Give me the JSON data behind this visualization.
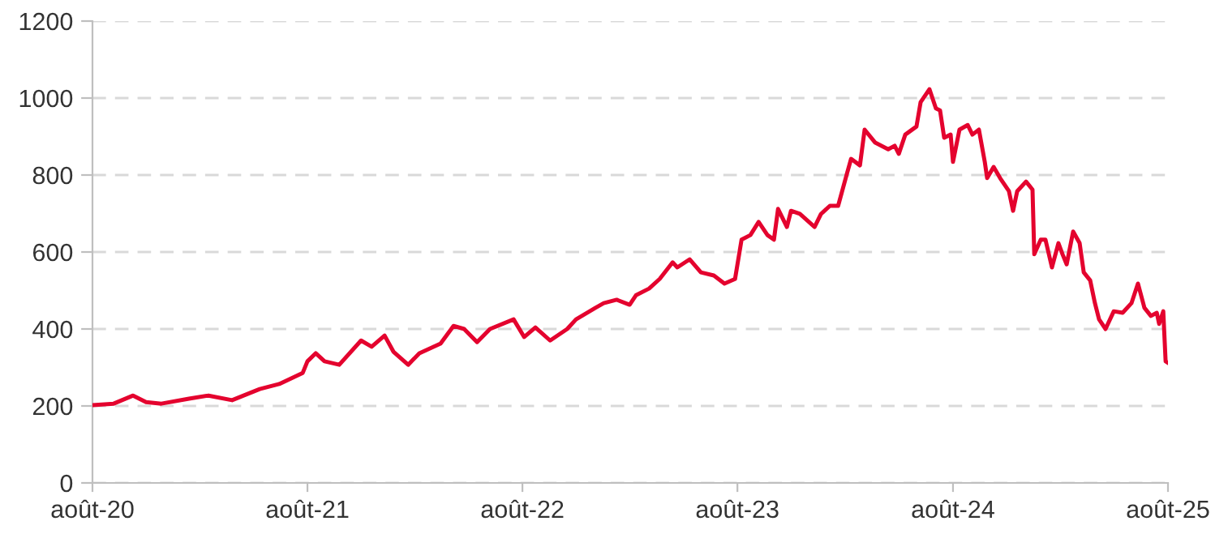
{
  "chart_data": {
    "type": "line",
    "xlim": [
      "2020-08-01",
      "2025-08-01"
    ],
    "xticks": [
      {
        "value": "2020-08-01",
        "label": "août-20"
      },
      {
        "value": "2021-08-01",
        "label": "août-21"
      },
      {
        "value": "2022-08-01",
        "label": "août-22"
      },
      {
        "value": "2023-08-01",
        "label": "août-23"
      },
      {
        "value": "2024-08-01",
        "label": "août-24"
      },
      {
        "value": "2025-08-01",
        "label": "août-25"
      }
    ],
    "ylim": [
      0,
      1200
    ],
    "yticks": [
      0,
      200,
      400,
      600,
      800,
      1000,
      1200
    ],
    "grid": "y",
    "line_style": "solid",
    "marker": "none",
    "series": [
      {
        "color": "#e4032e",
        "x": [
          "2020-08-01",
          "2020-09-06",
          "2020-10-09",
          "2020-10-31",
          "2020-11-26",
          "2021-01-12",
          "2021-02-14",
          "2021-03-26",
          "2021-05-12",
          "2021-06-14",
          "2021-07-24",
          "2021-08-01",
          "2021-08-15",
          "2021-08-30",
          "2021-09-24",
          "2021-10-31",
          "2021-11-18",
          "2021-12-10",
          "2021-12-25",
          "2022-01-19",
          "2022-02-07",
          "2022-03-15",
          "2022-04-06",
          "2022-04-24",
          "2022-05-16",
          "2022-06-07",
          "2022-07-17",
          "2022-08-04",
          "2022-08-23",
          "2022-09-17",
          "2022-10-16",
          "2022-10-31",
          "2022-12-03",
          "2022-12-17",
          "2023-01-08",
          "2023-01-30",
          "2023-02-10",
          "2023-03-04",
          "2023-03-22",
          "2023-04-13",
          "2023-04-21",
          "2023-05-12",
          "2023-05-31",
          "2023-06-22",
          "2023-07-10",
          "2023-07-28",
          "2023-08-08",
          "2023-08-23",
          "2023-09-06",
          "2023-09-21",
          "2023-10-02",
          "2023-10-09",
          "2023-10-24",
          "2023-10-31",
          "2023-11-15",
          "2023-12-10",
          "2023-12-21",
          "2024-01-05",
          "2024-01-19",
          "2024-02-03",
          "2024-02-10",
          "2024-02-25",
          "2024-03-04",
          "2024-03-22",
          "2024-04-13",
          "2024-04-24",
          "2024-05-01",
          "2024-05-12",
          "2024-05-31",
          "2024-06-07",
          "2024-06-22",
          "2024-07-03",
          "2024-07-10",
          "2024-07-17",
          "2024-07-28",
          "2024-08-01",
          "2024-08-12",
          "2024-08-26",
          "2024-09-03",
          "2024-09-14",
          "2024-09-24",
          "2024-09-28",
          "2024-10-09",
          "2024-10-20",
          "2024-11-04",
          "2024-11-11",
          "2024-11-18",
          "2024-12-03",
          "2024-12-14",
          "2024-12-17",
          "2024-12-28",
          "2025-01-05",
          "2025-01-16",
          "2025-01-27",
          "2025-02-03",
          "2025-02-10",
          "2025-02-21",
          "2025-03-04",
          "2025-03-11",
          "2025-03-22",
          "2025-03-30",
          "2025-04-06",
          "2025-04-17",
          "2025-05-01",
          "2025-05-16",
          "2025-05-31",
          "2025-06-11",
          "2025-06-22",
          "2025-07-03",
          "2025-07-13",
          "2025-07-17",
          "2025-07-24",
          "2025-07-28",
          "2025-08-01"
        ],
        "values": [
          202,
          206,
          227,
          210,
          206,
          219,
          227,
          215,
          244,
          257,
          286,
          316,
          337,
          316,
          307,
          370,
          354,
          383,
          341,
          307,
          337,
          362,
          408,
          400,
          366,
          400,
          425,
          379,
          404,
          370,
          400,
          425,
          455,
          467,
          476,
          463,
          488,
          505,
          530,
          573,
          560,
          581,
          547,
          539,
          518,
          530,
          632,
          644,
          678,
          644,
          632,
          712,
          665,
          707,
          699,
          665,
          699,
          720,
          720,
          804,
          842,
          825,
          918,
          884,
          867,
          876,
          855,
          905,
          926,
          989,
          1023,
          973,
          968,
          897,
          905,
          834,
          918,
          930,
          905,
          918,
          834,
          792,
          821,
          792,
          758,
          707,
          758,
          783,
          762,
          594,
          632,
          632,
          560,
          623,
          594,
          568,
          653,
          623,
          547,
          526,
          467,
          425,
          400,
          446,
          442,
          467,
          518,
          455,
          434,
          442,
          413,
          446,
          316,
          312
        ]
      }
    ]
  }
}
